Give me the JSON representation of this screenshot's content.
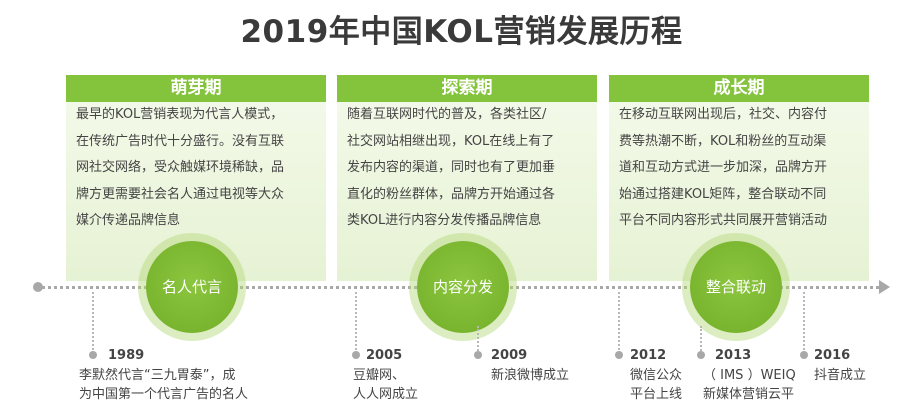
{
  "title": "2019年中国KOL营销发展历程",
  "stages": [
    {
      "header": "萌芽期",
      "lines": [
        "最早的KOL营销表现为代言人模式，",
        "在传统广告时代十分盛行。没有互联",
        "网社交网络，受众触媒环境稀缺，品",
        "牌方更需要社会名人通过电视等大众",
        "媒介传递品牌信息"
      ],
      "milestone": "名人代言"
    },
    {
      "header": "探索期",
      "lines": [
        "随着互联网时代的普及，各类社区/",
        "社交网站相继出现，KOL在线上有了",
        "发布内容的渠道，同时也有了更加垂",
        "直化的粉丝群体，品牌方开始通过各",
        "类KOL进行内容分发传播品牌信息"
      ],
      "milestone": "内容分发"
    },
    {
      "header": "成长期",
      "lines": [
        "在移动互联网出现后，社交、内容付",
        "费等热潮不断，KOL和粉丝的互动渠",
        "道和互动方式进一步加深，品牌方开",
        "始通过搭建KOL矩阵，整合联动不同",
        "平台不同内容形式共同展开营销活动"
      ],
      "milestone": "整合联动"
    }
  ],
  "events": [
    {
      "year": "1989",
      "lines": [
        "李默然代言“三九胃泰”，成",
        "为中国第一个代言广告的名人"
      ]
    },
    {
      "year": "2005",
      "lines": [
        "豆瓣网、",
        "人人网成立"
      ]
    },
    {
      "year": "2009",
      "lines": [
        "新浪微博成立"
      ]
    },
    {
      "year": "2012",
      "lines": [
        "微信公众",
        "平台上线"
      ]
    },
    {
      "year": "2013",
      "lines": [
        "（ IMS ）WEIQ",
        "新媒体营销云平"
      ]
    },
    {
      "year": "2016",
      "lines": [
        "抖音成立"
      ]
    }
  ],
  "colors": {
    "accent": "#84c33c",
    "panel": "#eef6e2",
    "circle": "#7ab52f",
    "axis": "#a8a8a8"
  }
}
